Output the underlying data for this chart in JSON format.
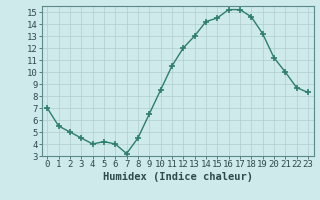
{
  "x": [
    0,
    1,
    2,
    3,
    4,
    5,
    6,
    7,
    8,
    9,
    10,
    11,
    12,
    13,
    14,
    15,
    16,
    17,
    18,
    19,
    20,
    21,
    22,
    23
  ],
  "y": [
    7,
    5.5,
    5,
    4.5,
    4,
    4.2,
    4,
    3.2,
    4.5,
    6.5,
    8.5,
    10.5,
    12,
    13,
    14.2,
    14.5,
    15.2,
    15.2,
    14.6,
    13.2,
    11.2,
    10,
    8.7,
    8.3
  ],
  "line_color": "#2e7d6e",
  "marker": "+",
  "marker_size": 4,
  "bg_color": "#ceeaea",
  "grid_color": "#b0cccc",
  "xlabel": "Humidex (Indice chaleur)",
  "xlim": [
    -0.5,
    23.5
  ],
  "ylim": [
    3,
    15.5
  ],
  "yticks": [
    3,
    4,
    5,
    6,
    7,
    8,
    9,
    10,
    11,
    12,
    13,
    14,
    15
  ],
  "xticks": [
    0,
    1,
    2,
    3,
    4,
    5,
    6,
    7,
    8,
    9,
    10,
    11,
    12,
    13,
    14,
    15,
    16,
    17,
    18,
    19,
    20,
    21,
    22,
    23
  ],
  "xlabel_fontsize": 7.5,
  "tick_fontsize": 6.5,
  "tick_color": "#2e4a4a",
  "spine_color": "#5a8a8a",
  "linewidth": 1.0
}
